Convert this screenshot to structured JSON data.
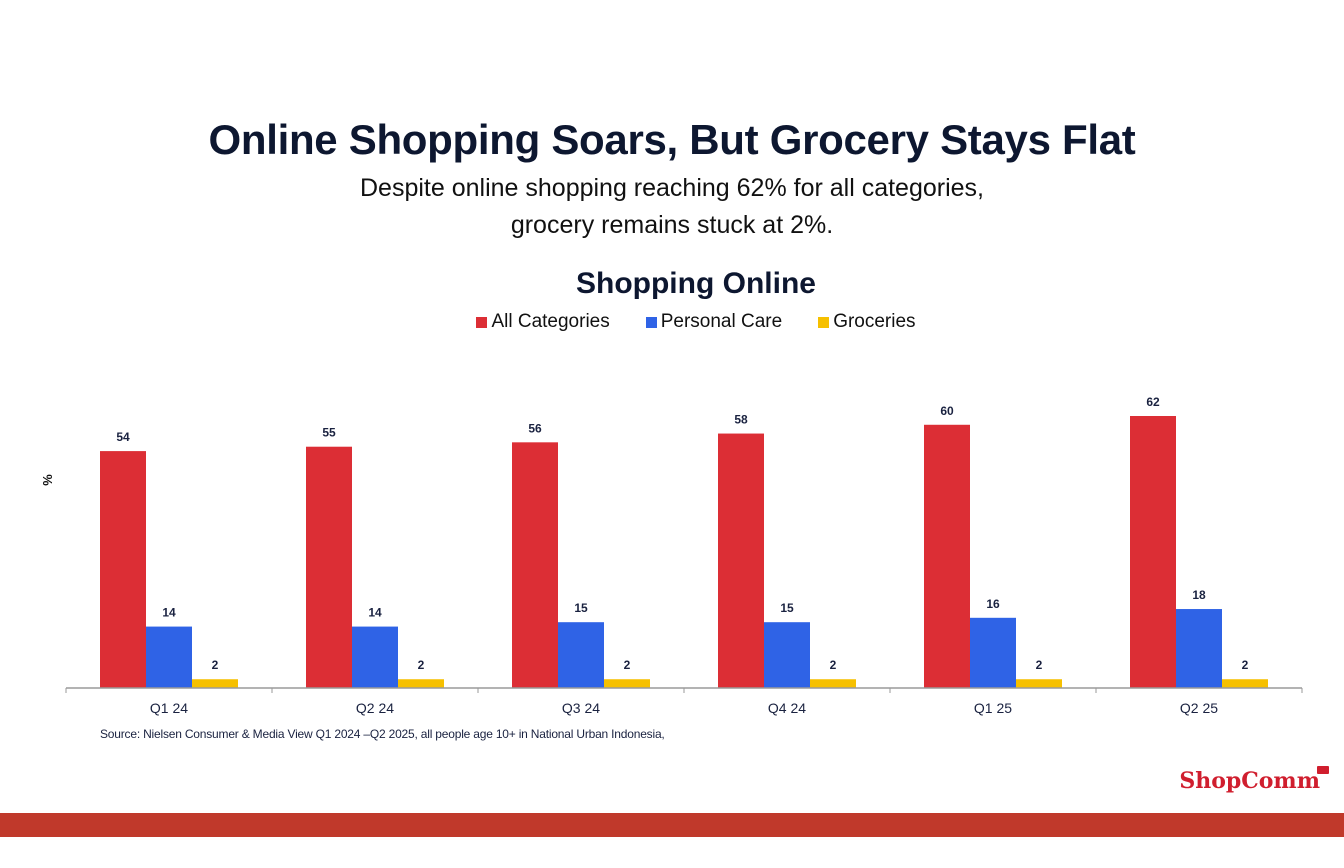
{
  "page": {
    "headline": "Online Shopping Soars, But Grocery Stays Flat",
    "subtitle_line1": "Despite online shopping reaching 62% for all categories,",
    "subtitle_line2": "grocery remains stuck at 2%.",
    "source": "Source: Nielsen Consumer & Media View Q1 2024 –Q2 2025, all people age 10+ in National Urban Indonesia,",
    "logo_text": "ShopComm"
  },
  "chart_data": {
    "type": "bar",
    "title": "Shopping Online",
    "ylabel": "%",
    "xlabel": "",
    "categories": [
      "Q1 24",
      "Q2 24",
      "Q3 24",
      "Q4 24",
      "Q1 25",
      "Q2 25"
    ],
    "series": [
      {
        "name": "All Categories",
        "color": "#dc2e35",
        "values": [
          54,
          55,
          56,
          58,
          60,
          62
        ]
      },
      {
        "name": "Personal Care",
        "color": "#2f63e6",
        "values": [
          14,
          14,
          15,
          15,
          16,
          18
        ]
      },
      {
        "name": "Groceries",
        "color": "#f6c000",
        "values": [
          2,
          2,
          2,
          2,
          2,
          2
        ]
      }
    ],
    "ylim": [
      0,
      62
    ],
    "grid": false,
    "legend_position": "top",
    "data_labels": true
  }
}
